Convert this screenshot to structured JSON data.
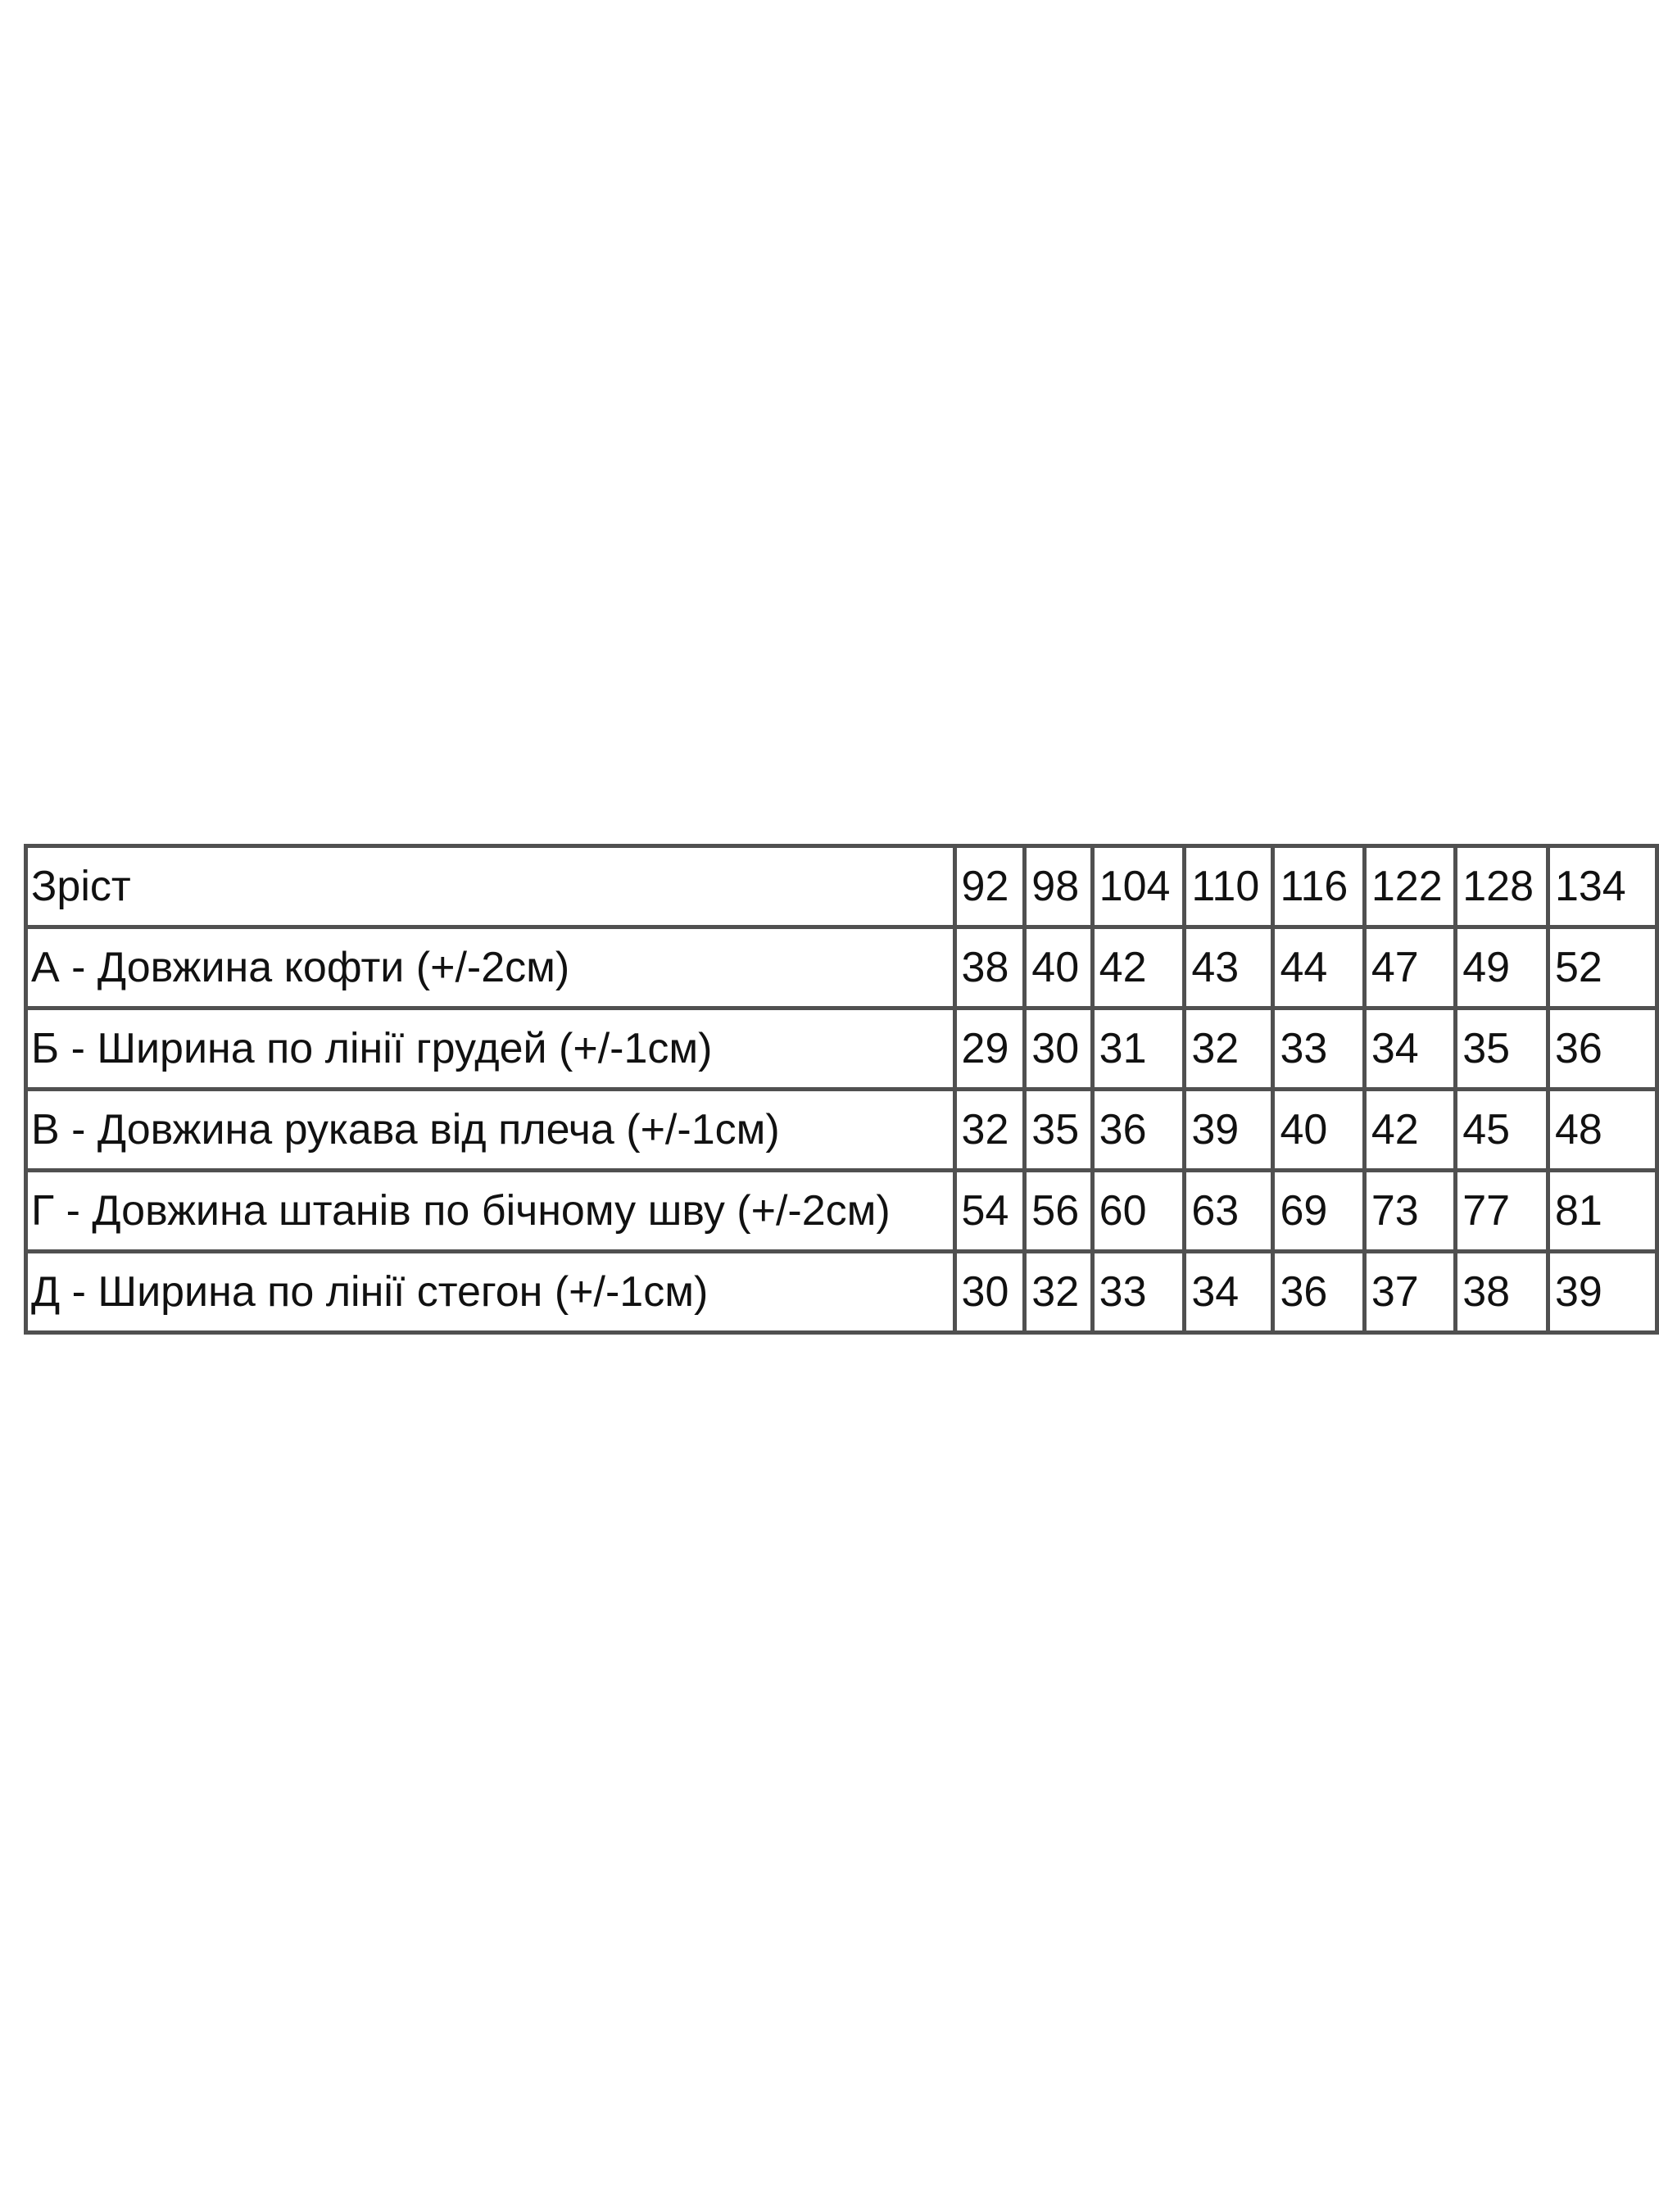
{
  "table": {
    "header": {
      "label": "Зріст",
      "sizes": [
        "92",
        "98",
        "104",
        "110",
        "116",
        "122",
        "128",
        "134"
      ]
    },
    "rows": [
      {
        "label": "А - Довжина кофти (+/-2см)",
        "values": [
          "38",
          "40",
          "42",
          "43",
          "44",
          "47",
          "49",
          "52"
        ]
      },
      {
        "label": "Б - Ширина по лінії грудей (+/-1см)",
        "values": [
          "29",
          "30",
          "31",
          "32",
          "33",
          "34",
          "35",
          "36"
        ]
      },
      {
        "label": "В - Довжина рукава від плеча (+/-1см)",
        "values": [
          "32",
          "35",
          "36",
          "39",
          "40",
          "42",
          "45",
          "48"
        ]
      },
      {
        "label": "Г - Довжина штанів по бічному шву (+/-2см)",
        "values": [
          "54",
          "56",
          "60",
          "63",
          "69",
          "73",
          "77",
          "81"
        ]
      },
      {
        "label": "Д - Ширина по лінії стегон (+/-1см)",
        "values": [
          "30",
          "32",
          "33",
          "34",
          "36",
          "37",
          "38",
          "39"
        ]
      }
    ]
  }
}
